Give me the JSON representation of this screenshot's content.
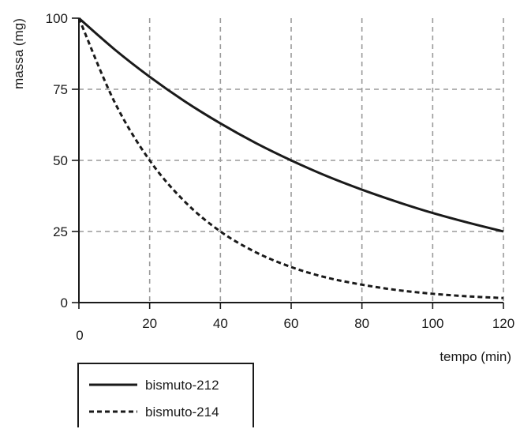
{
  "chart_data": {
    "type": "line",
    "xlabel": "tempo (min)",
    "ylabel": "massa (mg)",
    "xlim": [
      0,
      120
    ],
    "ylim": [
      0,
      100
    ],
    "x_ticks": [
      0,
      20,
      40,
      60,
      80,
      100,
      120
    ],
    "y_ticks": [
      0,
      25,
      50,
      75,
      100
    ],
    "grid": true,
    "legend_position": "bottom-left",
    "x": [
      0,
      10,
      20,
      30,
      40,
      50,
      60,
      70,
      80,
      90,
      100,
      110,
      120
    ],
    "series": [
      {
        "name": "bismuto-212",
        "line_style": "solid",
        "color": "#1a1a1a",
        "values": [
          100,
          89.1,
          79.4,
          70.7,
          63.0,
          56.1,
          50.0,
          44.5,
          39.7,
          35.4,
          31.5,
          28.1,
          25.0
        ]
      },
      {
        "name": "bismuto-214",
        "line_style": "dashed",
        "color": "#1a1a1a",
        "values": [
          100,
          70.7,
          50.0,
          35.4,
          25.0,
          17.7,
          12.5,
          8.8,
          6.3,
          4.4,
          3.1,
          2.2,
          1.6
        ]
      }
    ]
  }
}
